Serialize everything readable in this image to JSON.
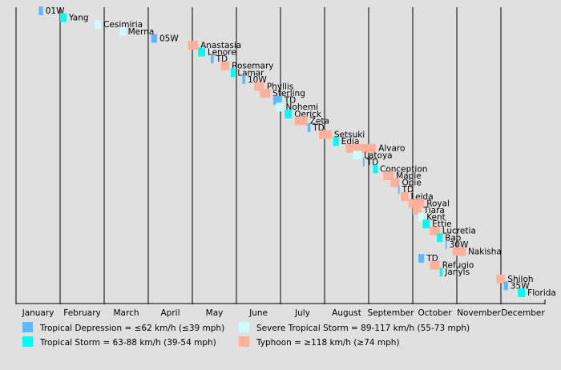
{
  "chart_data": {
    "type": "timeline",
    "x_axis": {
      "ticks": [
        "January",
        "February",
        "March",
        "April",
        "May",
        "June",
        "July",
        "August",
        "September",
        "October",
        "November",
        "December"
      ]
    },
    "grid": true,
    "colors": {
      "Tropical Depression": "#5fb9ff",
      "Tropical Storm": "#00faf4",
      "Severe Tropical Storm": "#ccfdff",
      "Typhoon": "#ffb098"
    },
    "legend": {
      "placement": "bottom",
      "items": [
        {
          "category": "Tropical Depression",
          "label": "Tropical Depression = ≤62 km/h (≤39 mph)"
        },
        {
          "category": "Tropical Storm",
          "label": "Tropical Storm = 63-88 km/h (39-54 mph)"
        },
        {
          "category": "Severe Tropical Storm",
          "label": "Severe Tropical Storm = 89-117 km/h (55-73 mph)"
        },
        {
          "category": "Typhoon",
          "label": "Typhoon = ≥118 km/h (≥74 mph)"
        }
      ]
    },
    "storms": [
      {
        "name": "01W",
        "category": "Tropical Depression",
        "start": "01-17",
        "end": "01-20"
      },
      {
        "name": "Yang",
        "category": "Tropical Storm",
        "start": "02-01",
        "end": "02-05"
      },
      {
        "name": "Cesimiria",
        "category": "Severe Tropical Storm",
        "start": "02-23",
        "end": "02-27"
      },
      {
        "name": "Merna",
        "category": "Severe Tropical Storm",
        "start": "03-12",
        "end": "03-16"
      },
      {
        "name": "05W",
        "category": "Tropical Depression",
        "start": "04-03",
        "end": "04-07"
      },
      {
        "name": "Anastasia",
        "category": "Typhoon",
        "start": "04-28",
        "end": "05-05"
      },
      {
        "name": "Lenore",
        "category": "Tropical Storm",
        "start": "05-05",
        "end": "05-10"
      },
      {
        "name": "TD",
        "category": "Tropical Depression",
        "start": "05-14",
        "end": "05-16"
      },
      {
        "name": "Rosemary",
        "category": "Typhoon",
        "start": "05-21",
        "end": "05-27"
      },
      {
        "name": "Lamar",
        "category": "Tropical Storm",
        "start": "05-28",
        "end": "05-31"
      },
      {
        "name": "10W",
        "category": "Tropical Depression",
        "start": "06-05",
        "end": "06-07"
      },
      {
        "name": "Phyllis",
        "category": "Typhoon",
        "start": "06-13",
        "end": "06-20"
      },
      {
        "name": "Sterling",
        "category": "Typhoon",
        "start": "06-17",
        "end": "06-24"
      },
      {
        "name": "TD",
        "category": "Tropical Depression",
        "start": "06-26",
        "end": "07-02"
      },
      {
        "name": "Nohemi",
        "category": "Severe Tropical Storm",
        "start": "06-28",
        "end": "07-03"
      },
      {
        "name": "Oerick",
        "category": "Tropical Storm",
        "start": "07-04",
        "end": "07-09"
      },
      {
        "name": "Zeta",
        "category": "Typhoon",
        "start": "07-11",
        "end": "07-20"
      },
      {
        "name": "TD",
        "category": "Tropical Depression",
        "start": "07-20",
        "end": "07-22"
      },
      {
        "name": "Setsuki",
        "category": "Typhoon",
        "start": "07-28",
        "end": "08-06"
      },
      {
        "name": "Edia",
        "category": "Tropical Storm",
        "start": "08-07",
        "end": "08-11"
      },
      {
        "name": "Alvaro",
        "category": "Typhoon",
        "start": "08-16",
        "end": "09-06"
      },
      {
        "name": "Latoya",
        "category": "Severe Tropical Storm",
        "start": "08-21",
        "end": "08-27"
      },
      {
        "name": "TD",
        "category": "Tropical Depression",
        "start": "08-28",
        "end": "08-29"
      },
      {
        "name": "Conception",
        "category": "Tropical Storm",
        "start": "09-04",
        "end": "09-07"
      },
      {
        "name": "Maple",
        "category": "Typhoon",
        "start": "09-11",
        "end": "09-18"
      },
      {
        "name": "Opie",
        "category": "Typhoon",
        "start": "09-16",
        "end": "09-22"
      },
      {
        "name": "TD",
        "category": "Tropical Depression",
        "start": "09-21",
        "end": "09-22"
      },
      {
        "name": "Leida",
        "category": "Typhoon",
        "start": "09-23",
        "end": "09-28"
      },
      {
        "name": "Royal",
        "category": "Typhoon",
        "start": "09-28",
        "end": "10-09"
      },
      {
        "name": "Tiara",
        "category": "Typhoon",
        "start": "10-01",
        "end": "10-07"
      },
      {
        "name": "Kent",
        "category": "Severe Tropical Storm",
        "start": "10-05",
        "end": "10-09"
      },
      {
        "name": "Ettie",
        "category": "Tropical Storm",
        "start": "10-08",
        "end": "10-13"
      },
      {
        "name": "Lucretia",
        "category": "Typhoon",
        "start": "10-13",
        "end": "10-20"
      },
      {
        "name": "Bao",
        "category": "Tropical Storm",
        "start": "10-18",
        "end": "10-22"
      },
      {
        "name": "30W",
        "category": "Tropical Depression",
        "start": "10-24",
        "end": "10-25"
      },
      {
        "name": "Nakisha",
        "category": "Typhoon",
        "start": "10-29",
        "end": "11-07"
      },
      {
        "name": "TD",
        "category": "Tropical Depression",
        "start": "10-05",
        "end": "10-09"
      },
      {
        "name": "Refugio",
        "category": "Typhoon",
        "start": "10-13",
        "end": "10-20"
      },
      {
        "name": "Janyis",
        "category": "Tropical Storm",
        "start": "10-20",
        "end": "10-22"
      },
      {
        "name": "Shiloh",
        "category": "Typhoon",
        "start": "11-28",
        "end": "12-04"
      },
      {
        "name": "35W",
        "category": "Tropical Depression",
        "start": "12-03",
        "end": "12-06"
      },
      {
        "name": "Florida",
        "category": "Tropical Storm",
        "start": "12-13",
        "end": "12-18"
      }
    ]
  }
}
